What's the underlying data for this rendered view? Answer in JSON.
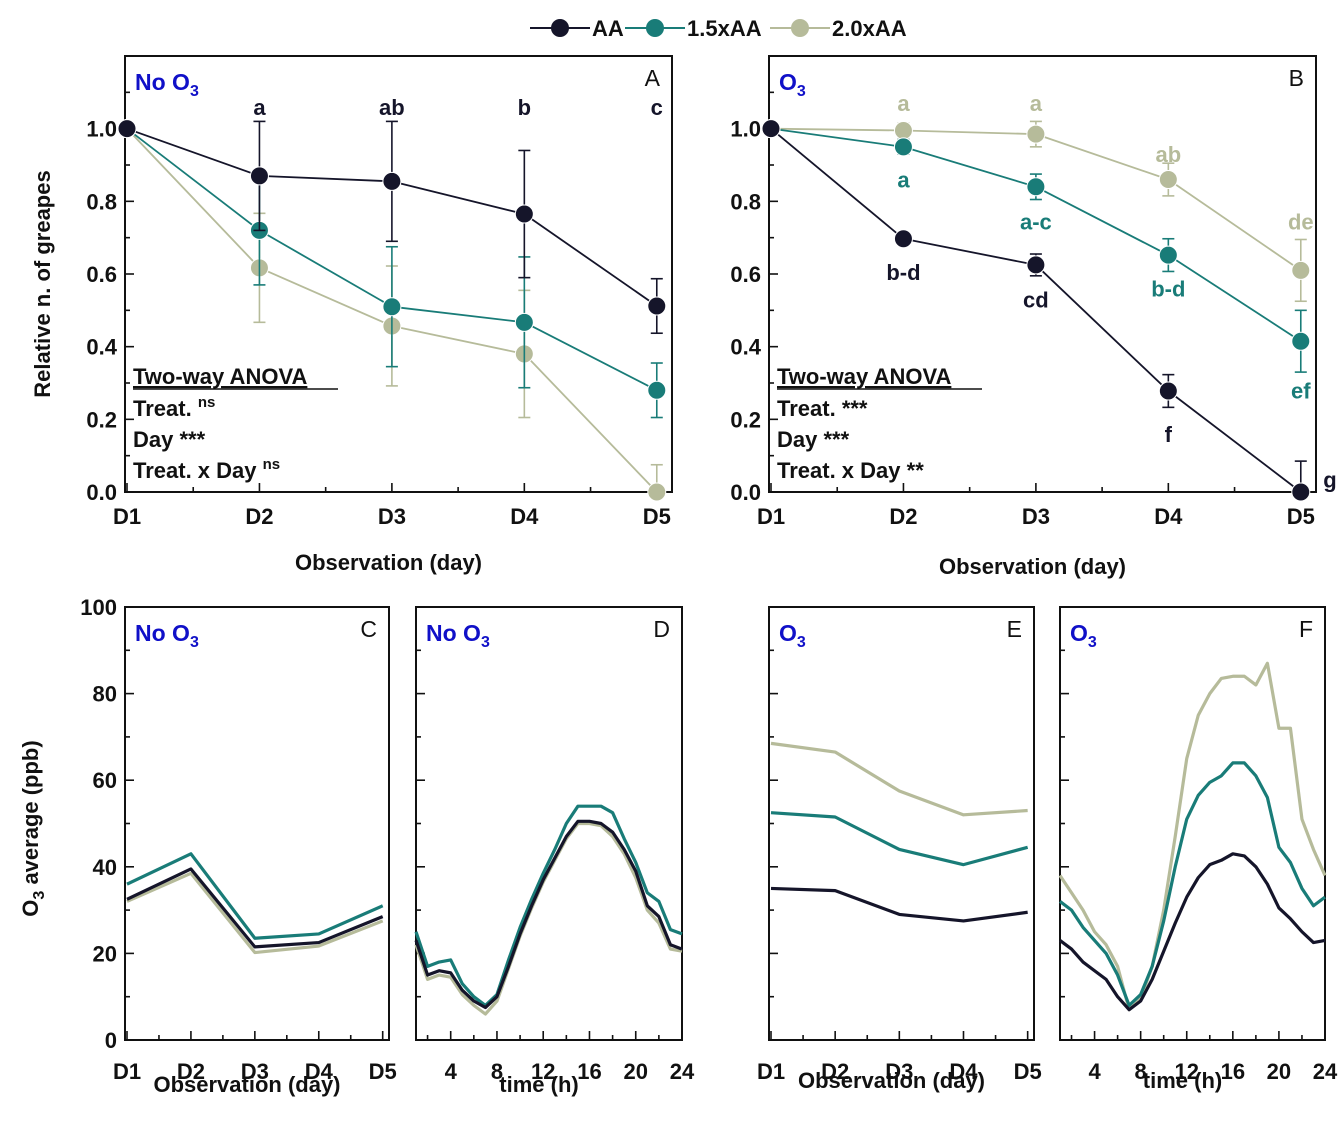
{
  "colors": {
    "AA": "#15152a",
    "1.5xAA": "#197c78",
    "2.0xAA": "#b6bb9a",
    "condition": "#1010c8",
    "axis": "#111111"
  },
  "legend": [
    {
      "name": "AA",
      "color": "#15152a"
    },
    {
      "name": "1.5xAA",
      "color": "#197c78"
    },
    {
      "name": "2.0xAA",
      "color": "#b6bb9a"
    }
  ],
  "chart_data": [
    {
      "id": "A",
      "type": "line",
      "panel_letter": "A",
      "condition_main": "No O",
      "condition_sub": "3",
      "xlabel": "Observation (day)",
      "ylabel": "Relative n. of greapes",
      "categories": [
        "D1",
        "D2",
        "D3",
        "D4",
        "D5"
      ],
      "ylim": [
        0,
        1.2
      ],
      "yticks": [
        "0.0",
        "0.2",
        "0.4",
        "0.6",
        "0.8",
        "1.0"
      ],
      "series": [
        {
          "name": "AA",
          "values": [
            1.0,
            0.87,
            0.855,
            0.765,
            0.512
          ],
          "errors": [
            0,
            0.15,
            0.165,
            0.175,
            0.075
          ]
        },
        {
          "name": "1.5xAA",
          "values": [
            1.0,
            0.72,
            0.51,
            0.467,
            0.28
          ],
          "errors": [
            0,
            0.15,
            0.165,
            0.18,
            0.075
          ]
        },
        {
          "name": "2.0xAA",
          "values": [
            1.0,
            0.617,
            0.457,
            0.38,
            0.0
          ],
          "errors": [
            0,
            0.15,
            0.165,
            0.175,
            0.075
          ]
        }
      ],
      "letters": [
        {
          "x": "D2",
          "text": "a",
          "series": "AA",
          "pos": 1.06
        },
        {
          "x": "D3",
          "text": "ab",
          "series": "AA",
          "pos": 1.06
        },
        {
          "x": "D4",
          "text": "b",
          "series": "AA",
          "pos": 1.06
        },
        {
          "x": "D5",
          "text": "c",
          "series": "AA",
          "pos": 1.06
        }
      ],
      "anova": {
        "title": "Two-way ANOVA",
        "rows": [
          {
            "label": "Treat.",
            "sig": "ns"
          },
          {
            "label": "Day",
            "sig": "***"
          },
          {
            "label": "Treat. x Day",
            "sig": "ns"
          }
        ]
      }
    },
    {
      "id": "B",
      "type": "line",
      "panel_letter": "B",
      "condition_main": "O",
      "condition_sub": "3",
      "xlabel": "Observation (day)",
      "ylabel": "",
      "categories": [
        "D1",
        "D2",
        "D3",
        "D4",
        "D5"
      ],
      "ylim": [
        0,
        1.2
      ],
      "yticks": [
        "0.0",
        "0.2",
        "0.4",
        "0.6",
        "0.8",
        "1.0"
      ],
      "series": [
        {
          "name": "AA",
          "values": [
            1.0,
            0.697,
            0.625,
            0.278,
            0.0
          ],
          "errors": [
            0,
            0.015,
            0.03,
            0.045,
            0.085
          ]
        },
        {
          "name": "1.5xAA",
          "values": [
            1.0,
            0.95,
            0.84,
            0.652,
            0.415
          ],
          "errors": [
            0,
            0.02,
            0.035,
            0.045,
            0.085
          ]
        },
        {
          "name": "2.0xAA",
          "values": [
            1.0,
            0.995,
            0.985,
            0.86,
            0.61
          ],
          "errors": [
            0,
            0.02,
            0.035,
            0.045,
            0.085
          ]
        }
      ],
      "letters": [
        {
          "x": "D2",
          "text": "a",
          "series": "2.0xAA",
          "pos": 1.07
        },
        {
          "x": "D3",
          "text": "a",
          "series": "2.0xAA",
          "pos": 1.07
        },
        {
          "x": "D4",
          "text": "ab",
          "series": "2.0xAA",
          "pos": 0.93
        },
        {
          "x": "D5",
          "text": "de",
          "series": "2.0xAA",
          "pos": 0.745
        },
        {
          "x": "D2",
          "text": "a",
          "series": "1.5xAA",
          "pos": 0.86
        },
        {
          "x": "D3",
          "text": "a-c",
          "series": "1.5xAA",
          "pos": 0.745
        },
        {
          "x": "D4",
          "text": "b-d",
          "series": "1.5xAA",
          "pos": 0.56
        },
        {
          "x": "D5",
          "text": "ef",
          "series": "1.5xAA",
          "pos": 0.28
        },
        {
          "x": "D2",
          "text": "b-d",
          "series": "AA",
          "pos": 0.605
        },
        {
          "x": "D3",
          "text": "cd",
          "series": "AA",
          "pos": 0.53
        },
        {
          "x": "D4",
          "text": "f",
          "series": "AA",
          "pos": 0.16
        },
        {
          "x": "D5",
          "text": "g",
          "series": "AA",
          "pos": 0.035,
          "dx": 0.22
        }
      ],
      "anova": {
        "title": "Two-way ANOVA",
        "rows": [
          {
            "label": "Treat.",
            "sig": "***"
          },
          {
            "label": "Day",
            "sig": "***"
          },
          {
            "label": "Treat. x Day",
            "sig": "**"
          }
        ]
      }
    },
    {
      "id": "C",
      "type": "line",
      "panel_letter": "C",
      "condition_main": "No O",
      "condition_sub": "3",
      "xlabel": "Observation (day)",
      "ylabel_main": "O",
      "ylabel_sub": "3",
      "ylabel_rest": " average (ppb)",
      "categories": [
        "D1",
        "D2",
        "D3",
        "D4",
        "D5"
      ],
      "ylim": [
        0,
        100
      ],
      "yticks": [
        "0",
        "20",
        "40",
        "60",
        "80",
        "100"
      ],
      "series": [
        {
          "name": "AA",
          "values": [
            32.5,
            39.5,
            21.5,
            22.5,
            28.5
          ]
        },
        {
          "name": "1.5xAA",
          "values": [
            36,
            43,
            23.5,
            24.5,
            31
          ]
        },
        {
          "name": "2.0xAA",
          "values": [
            32,
            38.5,
            20.2,
            21.7,
            27.5
          ]
        }
      ]
    },
    {
      "id": "D",
      "type": "line",
      "panel_letter": "D",
      "condition_main": "No O",
      "condition_sub": "3",
      "xlabel": "time (h)",
      "xlim": [
        1,
        24
      ],
      "ylim": [
        0,
        100
      ],
      "xticks": [
        "4",
        "8",
        "12",
        "16",
        "20",
        "24"
      ],
      "x": [
        1,
        2,
        3,
        4,
        5,
        6,
        7,
        8,
        9,
        10,
        11,
        12,
        13,
        14,
        15,
        16,
        17,
        18,
        19,
        20,
        21,
        22,
        23,
        24
      ],
      "series": [
        {
          "name": "AA",
          "values": [
            23,
            15,
            16,
            15.5,
            11.5,
            9,
            7.5,
            10,
            17,
            24.5,
            31,
            37,
            42,
            47,
            50.5,
            50.5,
            50,
            48,
            44,
            39,
            31,
            28.5,
            22,
            21
          ]
        },
        {
          "name": "1.5xAA",
          "values": [
            25,
            17,
            18,
            18.5,
            13,
            10,
            8,
            10.5,
            18.5,
            26,
            32.5,
            38.5,
            44,
            50,
            54,
            54,
            54,
            52.5,
            46.5,
            41,
            34,
            32,
            25.5,
            24.5
          ]
        },
        {
          "name": "2.0xAA",
          "values": [
            22,
            14,
            15,
            14.5,
            10.5,
            8,
            6,
            9,
            16.5,
            24,
            30.5,
            36.5,
            41.5,
            46.5,
            50,
            50,
            49.5,
            47,
            43,
            37.5,
            30,
            27,
            21,
            20.5
          ]
        }
      ]
    },
    {
      "id": "E",
      "type": "line",
      "panel_letter": "E",
      "condition_main": "O",
      "condition_sub": "3",
      "xlabel": "Observation (day)",
      "categories": [
        "D1",
        "D2",
        "D3",
        "D4",
        "D5"
      ],
      "ylim": [
        0,
        100
      ],
      "series": [
        {
          "name": "AA",
          "values": [
            35,
            34.5,
            29,
            27.5,
            29.5
          ]
        },
        {
          "name": "1.5xAA",
          "values": [
            52.5,
            51.5,
            44,
            40.5,
            44.5
          ]
        },
        {
          "name": "2.0xAA",
          "values": [
            68.5,
            66.5,
            57.5,
            52,
            53
          ]
        }
      ]
    },
    {
      "id": "F",
      "type": "line",
      "panel_letter": "F",
      "condition_main": "O",
      "condition_sub": "3",
      "xlabel": "time (h)",
      "xlim": [
        1,
        24
      ],
      "ylim": [
        0,
        100
      ],
      "xticks": [
        "4",
        "8",
        "12",
        "16",
        "20",
        "24"
      ],
      "x": [
        1,
        2,
        3,
        4,
        5,
        6,
        7,
        8,
        9,
        10,
        11,
        12,
        13,
        14,
        15,
        16,
        17,
        18,
        19,
        20,
        21,
        22,
        23,
        24
      ],
      "series": [
        {
          "name": "AA",
          "values": [
            23,
            21,
            18,
            16,
            14,
            10,
            7,
            9,
            14,
            20.5,
            27,
            33,
            37.5,
            40.5,
            41.5,
            43,
            42.5,
            40,
            36,
            30.5,
            28,
            25,
            22.5,
            23
          ]
        },
        {
          "name": "1.5xAA",
          "values": [
            32,
            30,
            26,
            23,
            20,
            15,
            8,
            10.5,
            17,
            27.5,
            40,
            51,
            56.5,
            59.5,
            61,
            64,
            64,
            61,
            56,
            44.5,
            41,
            35,
            31,
            33
          ]
        },
        {
          "name": "2.0xAA",
          "values": [
            38,
            34,
            30,
            25,
            22,
            17,
            7,
            9.5,
            17,
            30,
            47,
            65,
            75,
            80,
            83.5,
            84,
            84,
            82,
            87,
            72,
            72,
            51,
            44,
            38
          ]
        }
      ]
    }
  ]
}
